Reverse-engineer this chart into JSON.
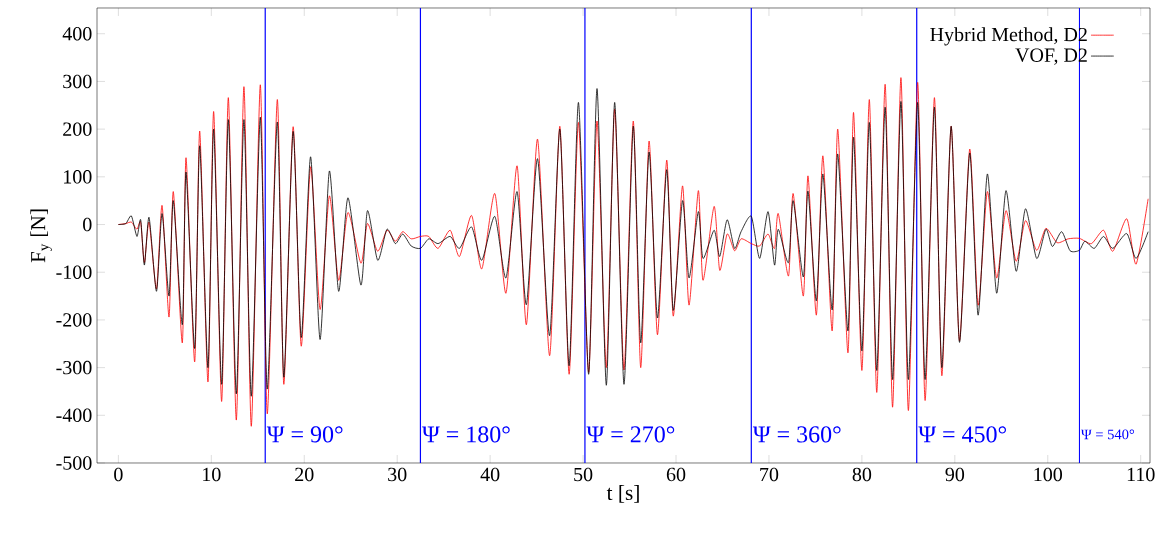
{
  "chart_data": {
    "type": "line",
    "xlabel": "t [s]",
    "ylabel": "F$_{y}$ [N]",
    "xlim": [
      -2.3,
      111
    ],
    "ylim": [
      -500,
      454
    ],
    "xticks": [
      0,
      10,
      20,
      30,
      40,
      50,
      60,
      70,
      80,
      90,
      100,
      110
    ],
    "yticks": [
      -500,
      -400,
      -300,
      -200,
      -100,
      0,
      100,
      200,
      300,
      400
    ],
    "legend": "top right",
    "series": [
      {
        "name": "Hybrid Method, D2",
        "color": "#ff0000",
        "x": [
          0,
          0.8,
          1.4,
          2.0,
          2.4,
          2.8,
          3.3,
          4.1,
          4.7,
          5.45,
          5.91,
          6.88,
          7.28,
          8.21,
          8.75,
          9.64,
          10.25,
          11.11,
          11.83,
          12.69,
          13.51,
          14.3,
          15.27,
          16.02,
          17.1,
          17.8,
          18.8,
          19.67,
          20.68,
          21.7,
          22.7,
          23.7,
          24.7,
          26.1,
          26.8,
          27.9,
          28.9,
          29.8,
          30.6,
          31.5,
          32.5,
          33.4,
          34.4,
          35.7,
          36.7,
          38.0,
          39.1,
          40.5,
          41.7,
          42.9,
          43.9,
          45.1,
          46.4,
          47.5,
          48.5,
          49.5,
          50.6,
          51.5,
          52.5,
          53.4,
          54.4,
          55.4,
          56.2,
          57.1,
          58.0,
          59.0,
          59.7,
          60.7,
          61.4,
          62.4,
          62.9,
          64.1,
          64.7,
          65.5,
          66.3,
          67.0,
          68.1,
          69.0,
          69.9,
          70.6,
          71.0,
          72.1,
          72.6,
          73.7,
          74.2,
          75.1,
          75.8,
          76.8,
          77.4,
          78.5,
          79.1,
          80.0,
          80.8,
          81.6,
          82.5,
          83.3,
          84.2,
          85.0,
          86.0,
          86.8,
          87.8,
          88.6,
          89.6,
          90.5,
          91.6,
          92.5,
          93.5,
          94.5,
          95.5,
          96.6,
          97.6,
          98.8,
          99.8,
          101.0,
          102.2,
          103.4,
          104.7,
          106.0,
          107.0,
          108.5,
          109.5,
          110.8
        ],
        "values": [
          0,
          2,
          5,
          -10,
          5,
          -80,
          5,
          -135,
          40,
          -194,
          69,
          -248,
          140,
          -288,
          196,
          -330,
          237,
          -371,
          266,
          -410,
          289,
          -423,
          293,
          -397,
          262,
          -335,
          205,
          -255,
          121,
          -178,
          60,
          -117,
          25,
          -81,
          2,
          -56,
          -12,
          -35,
          -15,
          -30,
          -25,
          -25,
          -50,
          -12,
          -67,
          19,
          -93,
          65,
          -144,
          123,
          -210,
          179,
          -275,
          206,
          -314,
          214,
          -310,
          217,
          -300,
          242,
          -305,
          217,
          -300,
          175,
          -231,
          135,
          -192,
          81,
          -169,
          71,
          -117,
          38,
          -96,
          -20,
          -55,
          -30,
          -40,
          -45,
          -20,
          -50,
          23,
          -108,
          65,
          -150,
          102,
          -190,
          144,
          -223,
          200,
          -269,
          235,
          -306,
          262,
          -352,
          294,
          -383,
          308,
          -390,
          298,
          -369,
          266,
          -317,
          206,
          -244,
          158,
          -169,
          69,
          -112,
          29,
          -77,
          8,
          -54,
          -8,
          -38,
          -30,
          -29,
          -40,
          -12,
          -56,
          12,
          -83,
          54
        ]
      },
      {
        "name": "VOF, D2",
        "color": "#000000",
        "x": [
          0,
          0.8,
          1.4,
          2.0,
          2.4,
          2.8,
          3.3,
          4.1,
          4.7,
          5.45,
          5.91,
          6.88,
          7.28,
          8.21,
          8.75,
          9.64,
          10.25,
          11.11,
          11.83,
          12.69,
          13.51,
          14.3,
          15.27,
          16.02,
          17.1,
          17.8,
          18.8,
          19.67,
          20.68,
          21.7,
          22.7,
          23.7,
          24.7,
          26.1,
          26.8,
          27.9,
          28.9,
          29.8,
          30.6,
          31.5,
          32.5,
          33.4,
          34.4,
          35.7,
          36.7,
          38.0,
          39.1,
          40.5,
          41.7,
          42.9,
          43.9,
          45.1,
          46.4,
          47.5,
          48.5,
          49.5,
          50.6,
          51.5,
          52.5,
          53.4,
          54.4,
          55.4,
          56.2,
          57.1,
          58.0,
          59.0,
          59.7,
          60.7,
          61.4,
          62.4,
          62.9,
          64.1,
          64.7,
          65.5,
          66.3,
          67.0,
          68.1,
          69.0,
          69.9,
          70.6,
          71.0,
          72.1,
          72.6,
          73.7,
          74.2,
          75.1,
          75.8,
          76.8,
          77.4,
          78.5,
          79.1,
          80.0,
          80.8,
          81.6,
          82.5,
          83.3,
          84.2,
          85.0,
          86.0,
          86.8,
          87.8,
          88.6,
          89.6,
          90.5,
          91.6,
          92.5,
          93.5,
          94.5,
          95.5,
          96.6,
          97.6,
          98.8,
          99.8,
          100.5,
          101.5,
          102.4,
          103.4,
          104.0,
          105.0,
          106.0,
          107.0,
          108.5,
          109.5,
          110.8
        ],
        "values": [
          0,
          2,
          18,
          -25,
          10,
          -85,
          15,
          -140,
          23,
          -150,
          50,
          -210,
          110,
          -260,
          165,
          -300,
          200,
          -335,
          220,
          -355,
          220,
          -360,
          225,
          -345,
          215,
          -320,
          195,
          -237,
          142,
          -241,
          112,
          -140,
          56,
          -127,
          29,
          -75,
          -10,
          -40,
          -20,
          -45,
          -50,
          -30,
          -40,
          -25,
          -50,
          -5,
          -75,
          17,
          -112,
          69,
          -168,
          138,
          -233,
          200,
          -296,
          256,
          -314,
          285,
          -337,
          256,
          -335,
          206,
          -248,
          152,
          -196,
          115,
          -180,
          50,
          -112,
          27,
          -71,
          -12,
          -67,
          10,
          -50,
          -15,
          17,
          -71,
          27,
          -85,
          -10,
          -80,
          50,
          -110,
          70,
          -160,
          106,
          -179,
          148,
          -223,
          183,
          -265,
          214,
          -306,
          246,
          -325,
          258,
          -325,
          256,
          -325,
          246,
          -300,
          206,
          -247,
          150,
          -190,
          106,
          -144,
          71,
          -98,
          33,
          -71,
          -10,
          -46,
          -15,
          -55,
          -54,
          -35,
          -50,
          -25,
          -50,
          -19,
          -71,
          -15
        ]
      }
    ],
    "ref_lines": [
      {
        "axis": "x",
        "value": 15.8,
        "color": "#0000ff"
      },
      {
        "axis": "x",
        "value": 32.5,
        "color": "#0000ff"
      },
      {
        "axis": "x",
        "value": 50.2,
        "color": "#0000ff"
      },
      {
        "axis": "x",
        "value": 68.1,
        "color": "#0000ff"
      },
      {
        "axis": "x",
        "value": 85.9,
        "color": "#0000ff"
      },
      {
        "axis": "x",
        "value": 103.4,
        "color": "#0000ff"
      }
    ],
    "annotations": [
      {
        "text": "Ψ = 90°",
        "x": 15.8,
        "y": -440
      },
      {
        "text": "Ψ = 180°",
        "x": 32.5,
        "y": -440
      },
      {
        "text": "Ψ = 270°",
        "x": 50.2,
        "y": -440
      },
      {
        "text": "Ψ = 360°",
        "x": 68.1,
        "y": -440
      },
      {
        "text": "Ψ = 450°",
        "x": 85.9,
        "y": -440
      },
      {
        "text": "Ψ = 540°",
        "x": 103.4,
        "y": -440
      }
    ]
  }
}
